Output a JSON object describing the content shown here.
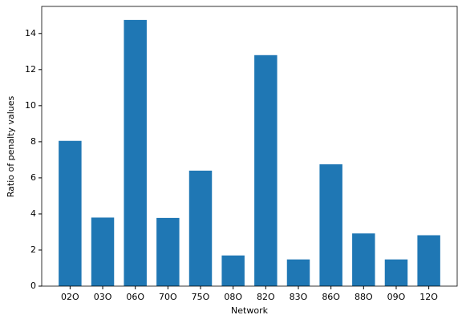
{
  "chart_data": {
    "type": "bar",
    "xlabel": "Network",
    "ylabel": "Ratio of penalty values",
    "categories": [
      "02O",
      "03O",
      "06O",
      "70O",
      "75O",
      "08O",
      "82O",
      "83O",
      "86O",
      "88O",
      "09O",
      "12O"
    ],
    "values": [
      8.05,
      3.8,
      14.75,
      3.78,
      6.4,
      1.7,
      12.8,
      1.48,
      6.75,
      2.92,
      1.48,
      2.82
    ],
    "color": "#1f77b4",
    "ylim": [
      0,
      15.5
    ],
    "yticks": [
      0,
      2,
      4,
      6,
      8,
      10,
      12,
      14
    ]
  }
}
